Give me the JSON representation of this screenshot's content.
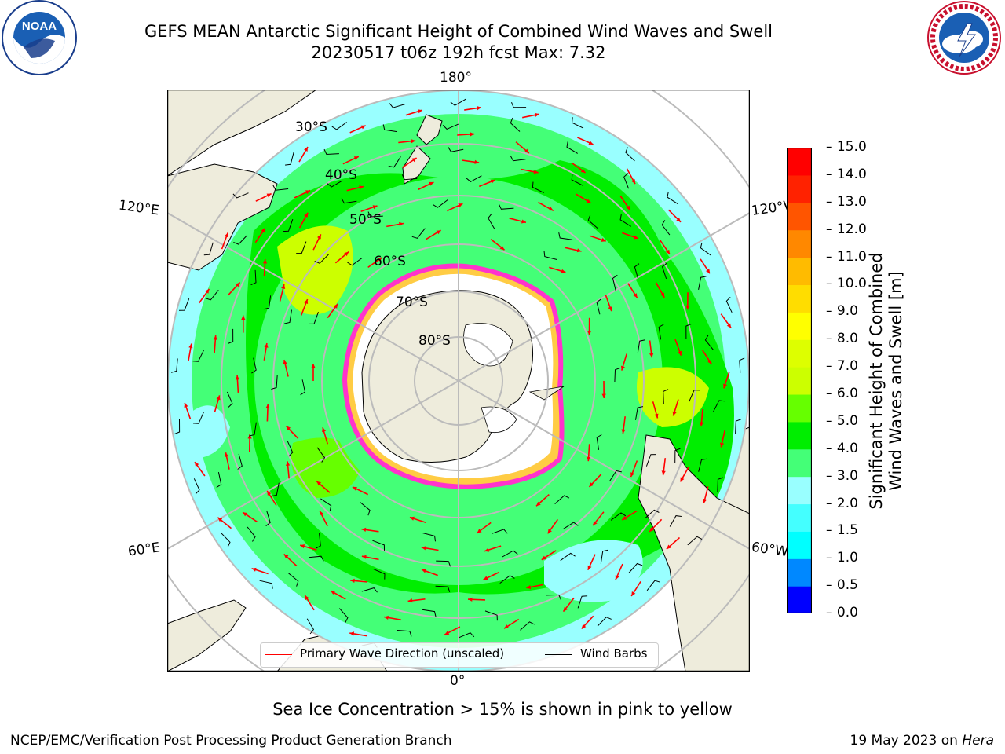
{
  "header": {
    "title_line1": "GEFS MEAN Antarctic Significant Height of Combined Wind Waves and Swell",
    "title_line2": "20230517 t06z 192h fcst   Max: 7.32"
  },
  "logos": {
    "left": {
      "text": "NOAA",
      "ring_text": "NATIONAL OCEANIC AND ATMOSPHERIC ADMINISTRATION · U.S. DEPARTMENT OF COMMERCE"
    },
    "right": {
      "ring_text": "NATIONAL WEATHER SERVICE"
    }
  },
  "map": {
    "projection": "south-polar-stereographic",
    "lon_labels": {
      "top": "180°",
      "bottom": "0°",
      "left_upper": "120°E",
      "left_lower": "60°E",
      "right_upper": "120°W",
      "right_lower": "60°W"
    },
    "lat_labels": [
      "30°S",
      "40°S",
      "50°S",
      "60°S",
      "70°S",
      "80°S"
    ],
    "colors": {
      "land": "#eeecdc",
      "ice_edge": "#ff33cc",
      "ice_inner": "#ffcc44",
      "grid": "#bbbbbb"
    }
  },
  "colorbar": {
    "label_line1": "Significant Height of Combined",
    "label_line2": "Wind Waves and Swell [m]",
    "ticks": [
      "15.0",
      "14.0",
      "13.0",
      "12.0",
      "11.0",
      "10.0",
      "9.0",
      "8.0",
      "7.0",
      "6.0",
      "5.0",
      "4.0",
      "3.0",
      "2.0",
      "1.5",
      "1.0",
      "0.5",
      "0.0"
    ],
    "colors_bottom_to_top": [
      "#0000ff",
      "#0088ff",
      "#00ffff",
      "#44ffff",
      "#99ffff",
      "#44ff77",
      "#00ee00",
      "#66ff00",
      "#ccff00",
      "#ddff00",
      "#ffff00",
      "#ffdd00",
      "#ffbb00",
      "#ff8800",
      "#ff5500",
      "#ff2200",
      "#ff0000"
    ]
  },
  "legend": {
    "wave_label": "Primary Wave Direction (unscaled)",
    "wave_color": "#ff0000",
    "wind_label": "Wind Barbs",
    "wind_color": "#000000"
  },
  "subnote": "Sea Ice Concentration > 15% is shown in pink to yellow",
  "footer": {
    "left": "NCEP/EMC/Verification Post Processing Product Generation Branch",
    "right_date": "19 May 2023 on ",
    "right_host": "Hera"
  }
}
